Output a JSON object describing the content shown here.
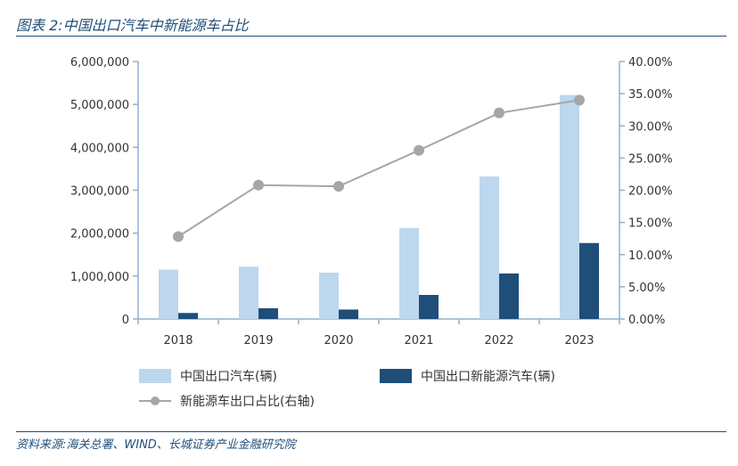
{
  "figure_title": "图表 2:中国出口汽车中新能源车占比",
  "source": "资料来源:海关总署、WIND、长城证券产业金融研究院",
  "chart_data": {
    "type": "bar",
    "categories": [
      "2018",
      "2019",
      "2020",
      "2021",
      "2022",
      "2023"
    ],
    "series": [
      {
        "name": "中国出口汽车(辆)",
        "type": "bar",
        "axis": "left",
        "color": "#bdd7ee",
        "values": [
          1150000,
          1220000,
          1080000,
          2120000,
          3320000,
          5220000
        ]
      },
      {
        "name": "中国出口新能源汽车(辆)",
        "type": "bar",
        "axis": "left",
        "color": "#1f4e79",
        "values": [
          140000,
          250000,
          220000,
          560000,
          1060000,
          1770000
        ]
      },
      {
        "name": "新能源车出口占比(右轴)",
        "type": "line",
        "axis": "right",
        "color": "#a6a6a6",
        "values": [
          0.128,
          0.208,
          0.206,
          0.262,
          0.32,
          0.34
        ]
      }
    ],
    "left_axis": {
      "min": 0,
      "max": 6000000,
      "ticks": [
        "0",
        "1,000,000",
        "2,000,000",
        "3,000,000",
        "4,000,000",
        "5,000,000",
        "6,000,000"
      ]
    },
    "right_axis": {
      "min": 0,
      "max": 0.4,
      "ticks": [
        "0.00%",
        "5.00%",
        "10.00%",
        "15.00%",
        "20.00%",
        "25.00%",
        "30.00%",
        "35.00%",
        "40.00%"
      ]
    },
    "grid": false,
    "legend_position": "bottom"
  }
}
